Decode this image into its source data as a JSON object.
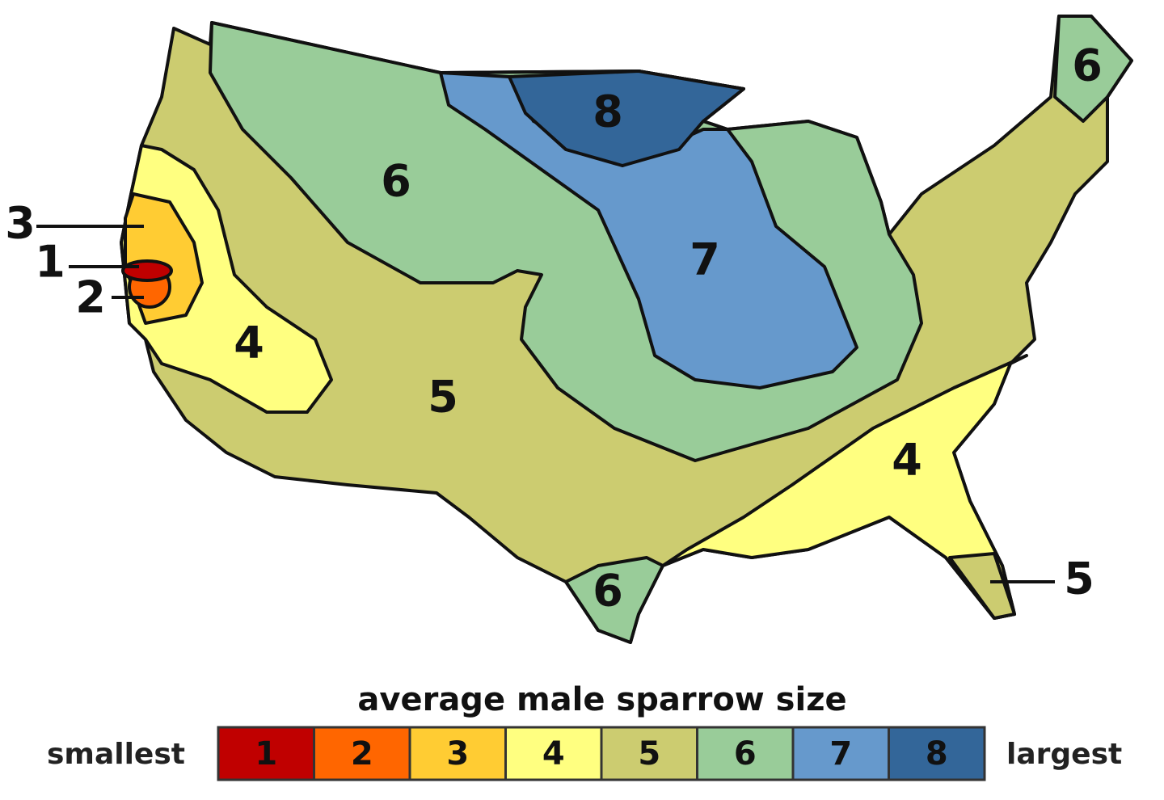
{
  "map": {
    "labels": [
      {
        "text": "3"
      },
      {
        "text": "1"
      },
      {
        "text": "2"
      },
      {
        "text": "4"
      },
      {
        "text": "6"
      },
      {
        "text": "8"
      },
      {
        "text": "7"
      },
      {
        "text": "5"
      },
      {
        "text": "6"
      },
      {
        "text": "4"
      },
      {
        "text": "5"
      },
      {
        "text": "6"
      }
    ]
  },
  "legend": {
    "title": "average male sparrow size",
    "low": "smallest",
    "high": "largest",
    "classes": [
      {
        "label": "1",
        "color": "#c00000"
      },
      {
        "label": "2",
        "color": "#ff6600"
      },
      {
        "label": "3",
        "color": "#ffcc33"
      },
      {
        "label": "4",
        "color": "#ffff80"
      },
      {
        "label": "5",
        "color": "#cccc70"
      },
      {
        "label": "6",
        "color": "#99cc99"
      },
      {
        "label": "7",
        "color": "#6699cc"
      },
      {
        "label": "8",
        "color": "#336699"
      }
    ]
  }
}
